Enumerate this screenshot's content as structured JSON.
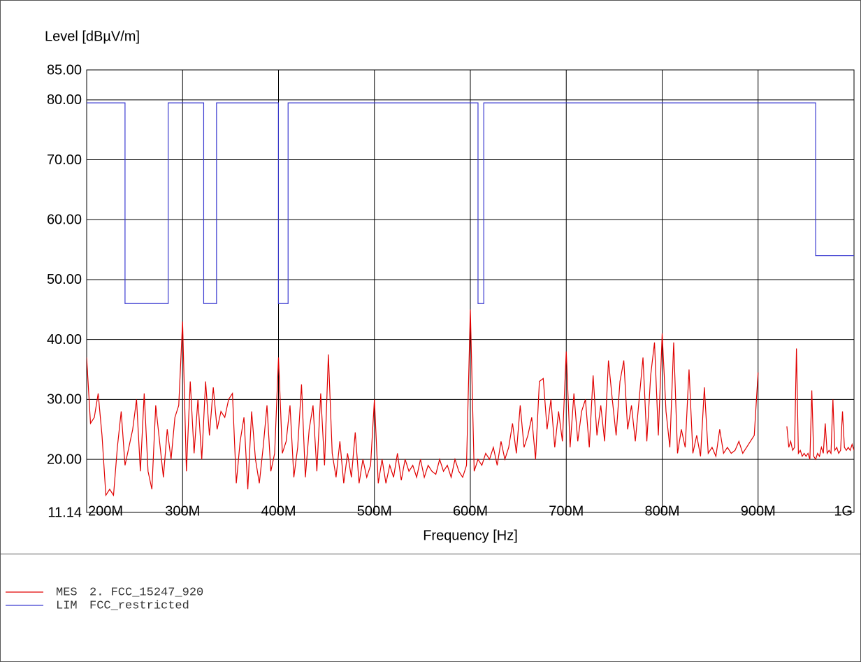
{
  "chart_data": {
    "type": "line",
    "y_label": "Level [dBµV/m]",
    "x_label": "Frequency [Hz]",
    "xlim": [
      200000000.0,
      1000000000.0
    ],
    "xticks": [
      {
        "value": 200000000.0,
        "label": "200M"
      },
      {
        "value": 300000000.0,
        "label": "300M"
      },
      {
        "value": 400000000.0,
        "label": "400M"
      },
      {
        "value": 500000000.0,
        "label": "500M"
      },
      {
        "value": 600000000.0,
        "label": "600M"
      },
      {
        "value": 700000000.0,
        "label": "700M"
      },
      {
        "value": 800000000.0,
        "label": "800M"
      },
      {
        "value": 900000000.0,
        "label": "900M"
      },
      {
        "value": 1000000000.0,
        "label": "1G"
      }
    ],
    "ylim": [
      11.14,
      85
    ],
    "yticks": [
      11.14,
      {
        "value": 20,
        "label": "20.00"
      },
      {
        "value": 30,
        "label": "30.00"
      },
      {
        "value": 40,
        "label": "40.00"
      },
      {
        "value": 50,
        "label": "50.00"
      },
      {
        "value": 60,
        "label": "60.00"
      },
      {
        "value": 70,
        "label": "70.00"
      },
      {
        "value": 80,
        "label": "80.00"
      },
      {
        "value": 85,
        "label": "85.00"
      }
    ],
    "grid": true,
    "series": [
      {
        "name": "MES",
        "description": "2. FCC_15247_920",
        "color": "#e00000",
        "x": [
          200000000.0,
          204000000.0,
          208000000.0,
          212000000.0,
          216000000.0,
          220000000.0,
          224000000.0,
          228000000.0,
          232000000.0,
          236000000.0,
          240000000.0,
          244000000.0,
          248000000.0,
          252000000.0,
          256000000.0,
          260000000.0,
          264000000.0,
          268000000.0,
          272000000.0,
          276000000.0,
          280000000.0,
          284000000.0,
          288000000.0,
          292000000.0,
          296000000.0,
          300000000.0,
          304000000.0,
          308000000.0,
          312000000.0,
          316000000.0,
          320000000.0,
          324000000.0,
          328000000.0,
          332000000.0,
          336000000.0,
          340000000.0,
          344000000.0,
          348000000.0,
          352000000.0,
          356000000.0,
          360000000.0,
          364000000.0,
          368000000.0,
          372000000.0,
          376000000.0,
          380000000.0,
          384000000.0,
          388000000.0,
          392000000.0,
          396000000.0,
          400000000.0,
          404000000.0,
          408000000.0,
          412000000.0,
          416000000.0,
          420000000.0,
          424000000.0,
          428000000.0,
          432000000.0,
          436000000.0,
          440000000.0,
          444000000.0,
          448000000.0,
          452000000.0,
          456000000.0,
          460000000.0,
          464000000.0,
          468000000.0,
          472000000.0,
          476000000.0,
          480000000.0,
          484000000.0,
          488000000.0,
          492000000.0,
          496000000.0,
          500000000.0,
          504000000.0,
          508000000.0,
          512000000.0,
          516000000.0,
          520000000.0,
          524000000.0,
          528000000.0,
          532000000.0,
          536000000.0,
          540000000.0,
          544000000.0,
          548000000.0,
          552000000.0,
          556000000.0,
          560000000.0,
          564000000.0,
          568000000.0,
          572000000.0,
          576000000.0,
          580000000.0,
          584000000.0,
          588000000.0,
          592000000.0,
          596000000.0,
          600000000.0,
          604000000.0,
          608000000.0,
          612000000.0,
          616000000.0,
          620000000.0,
          624000000.0,
          628000000.0,
          632000000.0,
          636000000.0,
          640000000.0,
          644000000.0,
          648000000.0,
          652000000.0,
          656000000.0,
          660000000.0,
          664000000.0,
          668000000.0,
          672000000.0,
          676000000.0,
          680000000.0,
          684000000.0,
          688000000.0,
          692000000.0,
          696000000.0,
          700000000.0,
          704000000.0,
          708000000.0,
          712000000.0,
          716000000.0,
          720000000.0,
          724000000.0,
          728000000.0,
          732000000.0,
          736000000.0,
          740000000.0,
          744000000.0,
          748000000.0,
          752000000.0,
          756000000.0,
          760000000.0,
          764000000.0,
          768000000.0,
          772000000.0,
          776000000.0,
          780000000.0,
          784000000.0,
          788000000.0,
          792000000.0,
          796000000.0,
          800000000.0,
          804000000.0,
          808000000.0,
          812000000.0,
          816000000.0,
          820000000.0,
          824000000.0,
          828000000.0,
          832000000.0,
          836000000.0,
          840000000.0,
          844000000.0,
          848000000.0,
          852000000.0,
          856000000.0,
          860000000.0,
          864000000.0,
          868000000.0,
          872000000.0,
          876000000.0,
          880000000.0,
          884000000.0,
          888000000.0,
          892000000.0,
          896000000.0,
          900000000.0,
          904000000.0,
          930000000.0,
          932000000.0,
          934000000.0,
          936000000.0,
          938000000.0,
          940000000.0,
          942000000.0,
          944000000.0,
          946000000.0,
          948000000.0,
          950000000.0,
          952000000.0,
          954000000.0,
          956000000.0,
          958000000.0,
          960000000.0,
          962000000.0,
          964000000.0,
          966000000.0,
          968000000.0,
          970000000.0,
          972000000.0,
          974000000.0,
          976000000.0,
          978000000.0,
          980000000.0,
          982000000.0,
          984000000.0,
          986000000.0,
          988000000.0,
          990000000.0,
          992000000.0,
          994000000.0,
          996000000.0,
          998000000.0,
          1000000000.0
        ],
        "values": [
          37,
          26,
          27,
          31,
          24,
          14,
          15,
          14,
          22,
          28,
          19,
          22,
          25,
          30,
          18,
          31,
          18,
          15,
          29,
          23,
          17,
          25,
          20,
          27,
          29,
          43,
          18,
          33,
          21,
          30,
          20,
          33,
          24,
          32,
          25,
          28,
          27,
          30,
          31,
          16,
          23,
          27,
          15,
          28,
          20,
          16,
          22,
          29,
          18,
          21,
          37,
          21,
          23,
          29,
          17,
          22,
          32.5,
          17,
          25,
          29,
          18,
          31,
          19,
          37.5,
          21,
          17,
          23,
          16,
          21,
          17,
          24.5,
          16,
          20,
          17,
          19,
          30,
          16,
          20,
          16,
          19,
          17,
          21,
          16.5,
          20,
          18,
          19,
          17,
          20,
          17,
          19,
          18,
          17.5,
          20,
          18,
          19,
          17,
          20,
          18,
          17,
          19,
          45,
          18,
          20,
          19,
          21,
          20,
          22,
          19,
          23,
          20,
          22,
          26,
          21,
          29,
          22,
          24,
          27,
          20,
          33,
          33.5,
          25,
          30,
          22,
          28,
          23,
          38,
          22,
          31,
          23,
          28,
          30,
          22,
          34,
          24,
          29,
          23,
          36.5,
          30,
          24,
          33,
          36.5,
          25,
          29,
          23,
          30,
          37,
          23,
          34,
          39.5,
          24,
          41,
          28,
          22,
          39.5,
          21,
          25,
          22,
          35,
          21,
          24,
          20.5,
          32,
          21,
          22,
          20.5,
          25,
          21,
          22,
          21,
          21.5,
          23,
          21,
          22,
          23,
          24,
          34.5,
          null,
          25.5,
          22,
          23,
          21.5,
          22,
          38.5,
          21,
          21.5,
          20.5,
          21,
          20.5,
          21,
          20,
          31.5,
          20.5,
          20,
          21,
          20.5,
          22,
          21,
          26,
          21,
          21.5,
          21,
          30,
          21.5,
          22,
          21,
          21.5,
          28,
          22,
          21.5,
          22,
          21.5,
          22.5,
          21.5
        ]
      },
      {
        "name": "LIM",
        "description": "FCC_restricted",
        "color": "#3a3ad0",
        "x": [
          200000000.0,
          240000000.0,
          240000000.0,
          285000000.0,
          285000000.0,
          322000000.0,
          322000000.0,
          335400000.0,
          335400000.0,
          399900000.0,
          399900000.0,
          410000000.0,
          410000000.0,
          608000000.0,
          608000000.0,
          614000000.0,
          614000000.0,
          960000000.0,
          960000000.0,
          1000000000.0
        ],
        "values": [
          79.5,
          79.5,
          46,
          46,
          79.5,
          79.5,
          46,
          46,
          79.5,
          79.5,
          46,
          46,
          79.5,
          79.5,
          46,
          46,
          79.5,
          79.5,
          54,
          54
        ]
      }
    ]
  }
}
